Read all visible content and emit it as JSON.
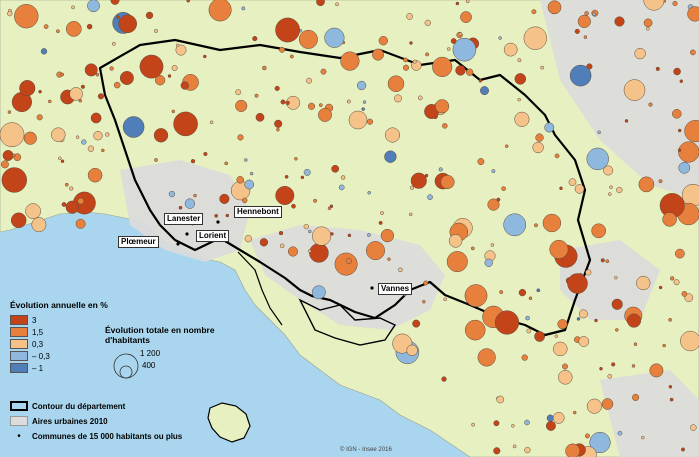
{
  "legend": {
    "color_title": "Évolution annuelle en %",
    "classes": [
      {
        "label": "3",
        "color": "#c4441a"
      },
      {
        "label": "1,5",
        "color": "#e6803c"
      },
      {
        "label": "0,3",
        "color": "#f5c28a"
      },
      {
        "label": "– 0,3",
        "color": "#8fb8df"
      },
      {
        "label": "– 1",
        "color": "#4f7eb8"
      }
    ],
    "size_title": "Évolution totale en nombre d'habitants",
    "size_values": [
      "1 200",
      "400"
    ],
    "items": [
      {
        "label": "Contour du département",
        "kind": "outline"
      },
      {
        "label": "Aires urbaines 2010",
        "kind": "area"
      },
      {
        "label": "Communes de 15 000 habitants ou plus",
        "kind": "dot"
      }
    ]
  },
  "cities": [
    {
      "name": "Hennebont",
      "marker": "city-marker"
    },
    {
      "name": "Lanester",
      "marker": "city-marker"
    },
    {
      "name": "Lorient",
      "marker": "city-marker"
    },
    {
      "name": "Plœmeur",
      "marker": "city-marker"
    },
    {
      "name": "Vannes",
      "marker": "city-marker"
    }
  ],
  "colors": {
    "sea": "#a9d6ee",
    "land": "#e6f0c0",
    "urban": "#dcdcdc",
    "outline": "#000000"
  },
  "credit": "© IGN - Insee 2016"
}
